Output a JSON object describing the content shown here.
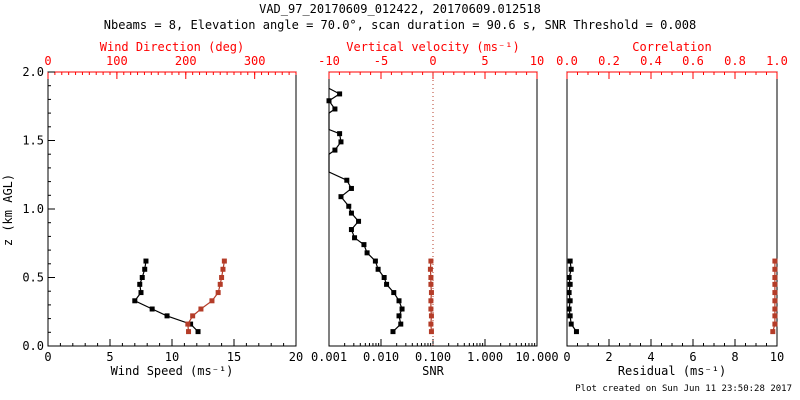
{
  "header": {
    "title": "VAD_97_20170609_012422, 20170609.012518",
    "subtitle": "Nbeams = 8, Elevation angle = 70.0°, scan duration = 90.6 s, SNR Threshold = 0.008"
  },
  "footer": {
    "created": "Plot created on Sun Jun 11 23:50:28 2017"
  },
  "colors": {
    "axis_red": "#ff0000",
    "data_red": "#b43c28",
    "black": "#000000"
  },
  "chart_data": {
    "type": "line",
    "title": "VAD_97_20170609_012422, 20170609.012518",
    "subtitle": "Nbeams = 8, Elevation angle = 70.0°, scan duration = 90.6 s, SNR Threshold = 0.008",
    "grid": false,
    "z_axis": {
      "label": "z (km AGL)",
      "range": [
        0,
        2
      ],
      "majors": [
        0,
        0.5,
        1,
        1.5,
        2
      ],
      "tick_labels": [
        "0.0",
        "0.5",
        "1.0",
        "1.5",
        "2.0"
      ],
      "minor_step": 0.1
    },
    "z_levels": [
      0.62,
      0.56,
      0.5,
      0.45,
      0.39,
      0.33,
      0.27,
      0.22,
      0.16,
      0.105
    ],
    "panels": [
      {
        "name": "wind",
        "bottom_axis": {
          "label": "Wind Speed (ms⁻¹)",
          "scale": "linear",
          "range": [
            0,
            20
          ],
          "majors": [
            0,
            5,
            10,
            15,
            20
          ],
          "labels": [
            "0",
            "5",
            "10",
            "15",
            "20"
          ],
          "minor_step": 1,
          "color": "black"
        },
        "top_axis": {
          "label": "Wind Direction (deg)",
          "scale": "linear",
          "range": [
            0,
            360
          ],
          "majors": [
            0,
            100,
            200,
            300
          ],
          "labels": [
            "0",
            "100",
            "200",
            "300"
          ],
          "minor_step": 10,
          "color": "red"
        },
        "series": [
          {
            "name": "wind-speed",
            "axis": "bottom",
            "color": "black",
            "values": [
              7.9,
              7.8,
              7.6,
              7.4,
              7.5,
              7.0,
              8.4,
              9.6,
              11.5,
              12.1
            ]
          },
          {
            "name": "wind-direction",
            "axis": "top",
            "color": "red",
            "values": [
              256,
              254,
              252,
              250,
              247,
              238,
              222,
              210,
              203,
              204
            ]
          }
        ]
      },
      {
        "name": "snr",
        "bottom_axis": {
          "label": "SNR",
          "scale": "log",
          "range": [
            0.001,
            10
          ],
          "majors": [
            0.001,
            0.01,
            0.1,
            1,
            10
          ],
          "labels": [
            "0.001",
            "0.010",
            "0.100",
            "1.000",
            "10.000"
          ],
          "color": "black"
        },
        "top_axis": {
          "label": "Vertical velocity (ms⁻¹)",
          "scale": "linear",
          "range": [
            -10,
            10
          ],
          "majors": [
            -10,
            -5,
            0,
            5,
            10
          ],
          "labels": [
            "-10",
            "-5",
            "0",
            "5",
            "10"
          ],
          "minor_step": 1,
          "color": "red"
        },
        "zero_line": {
          "axis": "top",
          "value": 0,
          "style": "dotted",
          "color": "red"
        },
        "series": [
          {
            "name": "snr-profile",
            "axis": "bottom",
            "color": "black",
            "points": [
              [
                1.88,
                0.001,
                0
              ],
              [
                1.84,
                0.0016,
                1
              ],
              [
                1.79,
                0.001,
                1
              ],
              [
                1.73,
                0.0013,
                1
              ],
              [
                1.7,
                0.001,
                0
              ],
              [
                1.58,
                0.001,
                0
              ],
              [
                1.55,
                0.0016,
                1
              ],
              [
                1.49,
                0.0017,
                1
              ],
              [
                1.43,
                0.0013,
                1
              ],
              [
                1.4,
                0.001,
                0
              ],
              [
                1.27,
                0.001,
                0
              ],
              [
                1.21,
                0.0022,
                1
              ],
              [
                1.15,
                0.0027,
                1
              ],
              [
                1.09,
                0.0017,
                1
              ],
              [
                1.02,
                0.0024,
                1
              ],
              [
                0.97,
                0.0027,
                1
              ],
              [
                0.91,
                0.0037,
                1
              ],
              [
                0.85,
                0.0027,
                1
              ],
              [
                0.79,
                0.0031,
                1
              ],
              [
                0.74,
                0.0047,
                1
              ],
              [
                0.68,
                0.0054,
                1
              ],
              [
                0.62,
                0.0078,
                1
              ],
              [
                0.56,
                0.0088,
                1
              ],
              [
                0.5,
                0.0115,
                1
              ],
              [
                0.45,
                0.0128,
                1
              ],
              [
                0.39,
                0.0176,
                1
              ],
              [
                0.33,
                0.0222,
                1
              ],
              [
                0.27,
                0.0254,
                1
              ],
              [
                0.22,
                0.0222,
                1
              ],
              [
                0.16,
                0.024,
                1
              ],
              [
                0.105,
                0.017,
                1
              ]
            ]
          },
          {
            "name": "vertical-velocity",
            "axis": "top",
            "color": "red",
            "values": [
              -0.2,
              -0.25,
              -0.2,
              -0.2,
              -0.15,
              -0.2,
              -0.2,
              -0.15,
              -0.2,
              -0.15
            ]
          }
        ]
      },
      {
        "name": "residual",
        "bottom_axis": {
          "label": "Residual (ms⁻¹)",
          "scale": "linear",
          "range": [
            0,
            10
          ],
          "majors": [
            0,
            2,
            4,
            6,
            8,
            10
          ],
          "labels": [
            "0",
            "2",
            "4",
            "6",
            "8",
            "10"
          ],
          "minor_step": 0.5,
          "color": "black"
        },
        "top_axis": {
          "label": "Correlation",
          "scale": "linear",
          "range": [
            0,
            1
          ],
          "majors": [
            0,
            0.2,
            0.4,
            0.6,
            0.8,
            1
          ],
          "labels": [
            "0.0",
            "0.2",
            "0.4",
            "0.6",
            "0.8",
            "1.0"
          ],
          "minor_step": 0.05,
          "color": "red"
        },
        "series": [
          {
            "name": "residual",
            "axis": "bottom",
            "color": "black",
            "values": [
              0.15,
              0.2,
              0.1,
              0.15,
              0.1,
              0.15,
              0.1,
              0.15,
              0.2,
              0.45
            ]
          },
          {
            "name": "correlation",
            "axis": "top",
            "color": "red",
            "values": [
              0.99,
              0.99,
              0.99,
              0.99,
              0.99,
              0.99,
              0.99,
              0.99,
              0.99,
              0.98
            ]
          }
        ]
      }
    ]
  }
}
